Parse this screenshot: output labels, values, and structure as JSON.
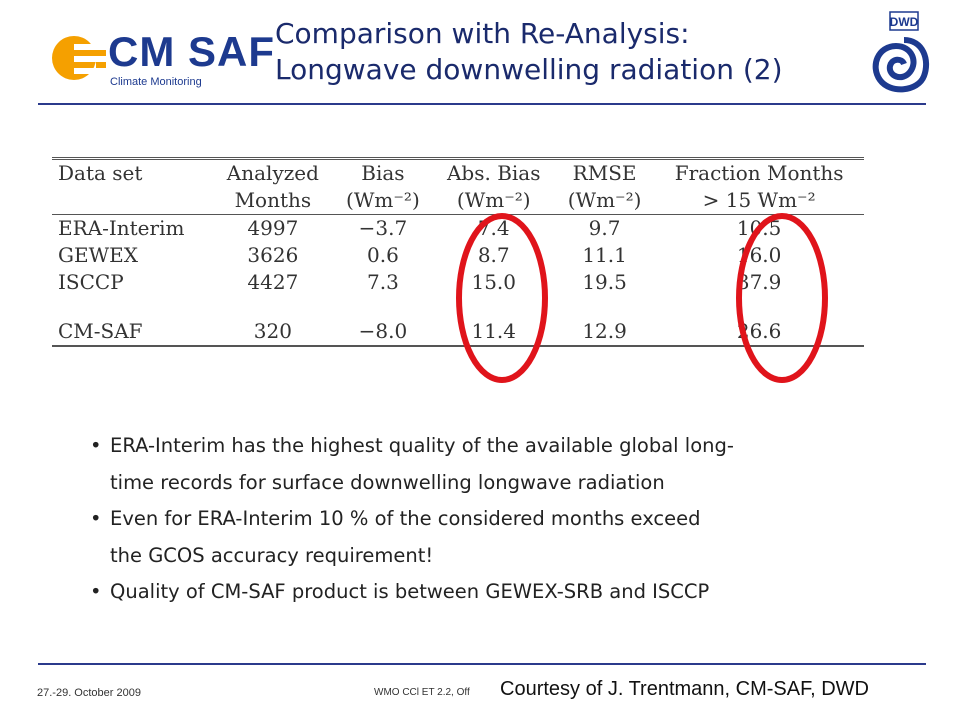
{
  "header": {
    "logo_text": "CM SAF",
    "logo_sub": "Climate Monitoring",
    "title_line1": "Comparison with Re-Analysis:",
    "title_line2": "Longwave downwelling radiation (2)",
    "dwd_text": "DWD"
  },
  "table": {
    "headers": [
      [
        "Data set",
        ""
      ],
      [
        "Analyzed",
        "Months"
      ],
      [
        "Bias",
        "(Wm⁻²)"
      ],
      [
        "Abs. Bias",
        "(Wm⁻²)"
      ],
      [
        "RMSE",
        "(Wm⁻²)"
      ],
      [
        "Fraction Months",
        "> 15 Wm⁻²"
      ]
    ],
    "rows": [
      [
        "ERA-Interim",
        "4997",
        "−3.7",
        "7.4",
        "9.7",
        "10.5"
      ],
      [
        "GEWEX",
        "3626",
        "0.6",
        "8.7",
        "11.1",
        "16.0"
      ],
      [
        "ISCCP",
        "4427",
        "7.3",
        "15.0",
        "19.5",
        "37.9"
      ],
      [
        "CM-SAF",
        "320",
        "−8.0",
        "11.4",
        "12.9",
        "26.6"
      ]
    ]
  },
  "highlight_color": "#e0141b",
  "bullets": [
    "ERA-Interim has the highest quality of the available global long-",
    "time records for surface downwelling longwave radiation",
    "Even for ERA-Interim 10 % of the considered months exceed",
    "the GCOS accuracy requirement!",
    "Quality of CM-SAF product is between GEWEX-SRB and ISCCP"
  ],
  "footer": {
    "date": "27.-29. October 2009",
    "meeting": "WMO CCl ET 2.2, Off",
    "courtesy": "Courtesy of J. Trentmann, CM-SAF, DWD"
  }
}
